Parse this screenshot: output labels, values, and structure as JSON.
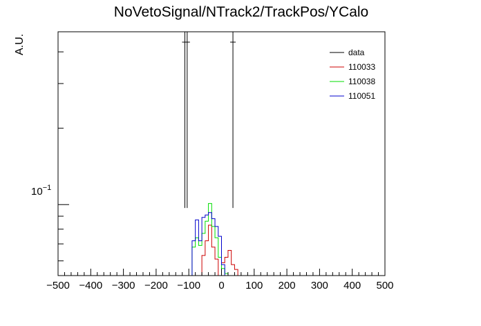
{
  "chart_data": {
    "type": "line",
    "title": "NoVetoSignal/NTrack2/TrackPos/YCalo",
    "xlabel": "",
    "ylabel": "A.U.",
    "xlim": [
      -500,
      500
    ],
    "ylim": [
      0.0525,
      0.48
    ],
    "yscale": "log",
    "grid": false,
    "legend_position": "top-right",
    "x_tick_labels": [
      "−500",
      "−400",
      "−300",
      "−200",
      "−100",
      "0",
      "100",
      "200",
      "300",
      "400",
      "500"
    ],
    "x_tick_values": [
      -500,
      -400,
      -300,
      -200,
      -100,
      0,
      100,
      200,
      300,
      400,
      500
    ],
    "y_tick_label_base": "10",
    "y_tick_label_exp": "−1",
    "y_tick_value": 0.1,
    "bin_width": 10,
    "series": [
      {
        "name": "data",
        "color": "#000000",
        "style": "points",
        "x": [
          -112,
          -105,
          35
        ],
        "y": [
          0.48,
          0.48,
          0.48
        ],
        "y_low": [
          0.097,
          0.097,
          0.097
        ],
        "y_high": [
          0.48,
          0.48,
          0.48
        ]
      },
      {
        "name": "110033",
        "color": "#cc0000",
        "style": "hist",
        "bin_edges": [
          -60,
          -50,
          -40,
          -30,
          -20,
          -10,
          0,
          10,
          20,
          30,
          40,
          50
        ],
        "values": [
          0.063,
          0.072,
          0.083,
          0.068,
          0.061,
          0.0525,
          0.059,
          0.062,
          0.066,
          0.058,
          0.0555
        ]
      },
      {
        "name": "110038",
        "color": "#00dd00",
        "style": "hist",
        "bin_edges": [
          -90,
          -80,
          -70,
          -60,
          -50,
          -40,
          -30,
          -20,
          -10,
          0,
          10,
          20
        ],
        "values": [
          0.068,
          0.074,
          0.069,
          0.077,
          0.086,
          0.101,
          0.082,
          0.074,
          0.062,
          0.056,
          0.0535
        ]
      },
      {
        "name": "110051",
        "color": "#0000cc",
        "style": "hist",
        "bin_edges": [
          -90,
          -80,
          -70,
          -60,
          -50,
          -40,
          -30,
          -20,
          -10,
          0,
          10
        ],
        "values": [
          0.072,
          0.087,
          0.072,
          0.089,
          0.091,
          0.093,
          0.088,
          0.082,
          0.075,
          0.058
        ]
      }
    ]
  }
}
